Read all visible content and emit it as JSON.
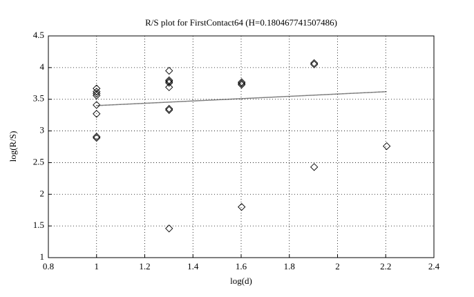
{
  "chart_data": {
    "type": "scatter",
    "title": "R/S plot for FirstContact64 (H=0.180467741507486)",
    "x_label": "log(d)",
    "y_label": "log(R/S)",
    "x": [
      1,
      1,
      1,
      1,
      1,
      1,
      1,
      1,
      1.301,
      1.301,
      1.301,
      1.301,
      1.301,
      1.301,
      1.301,
      1.301,
      1.602,
      1.602,
      1.602,
      1.602,
      1.903,
      1.903,
      1.903,
      2.204
    ],
    "values": [
      3.67,
      3.62,
      3.59,
      3.56,
      3.41,
      3.27,
      2.91,
      2.89,
      3.95,
      3.8,
      3.78,
      3.76,
      3.69,
      3.35,
      3.33,
      1.46,
      3.77,
      3.75,
      3.73,
      1.8,
      4.07,
      4.05,
      2.43,
      2.76
    ],
    "color": "#000000",
    "fit": {
      "x": [
        1,
        2.204
      ],
      "values": [
        3.4,
        3.62
      ],
      "color": "#000000"
    },
    "xlim": [
      0.8,
      2.4
    ],
    "xticks": [
      0.8,
      1,
      1.2,
      1.4,
      1.6,
      1.8,
      2,
      2.2,
      2.4
    ],
    "ylim": [
      1,
      4.5
    ],
    "yticks": [
      1,
      1.5,
      2,
      2.5,
      3,
      3.5,
      4,
      4.5
    ],
    "grid": true
  }
}
